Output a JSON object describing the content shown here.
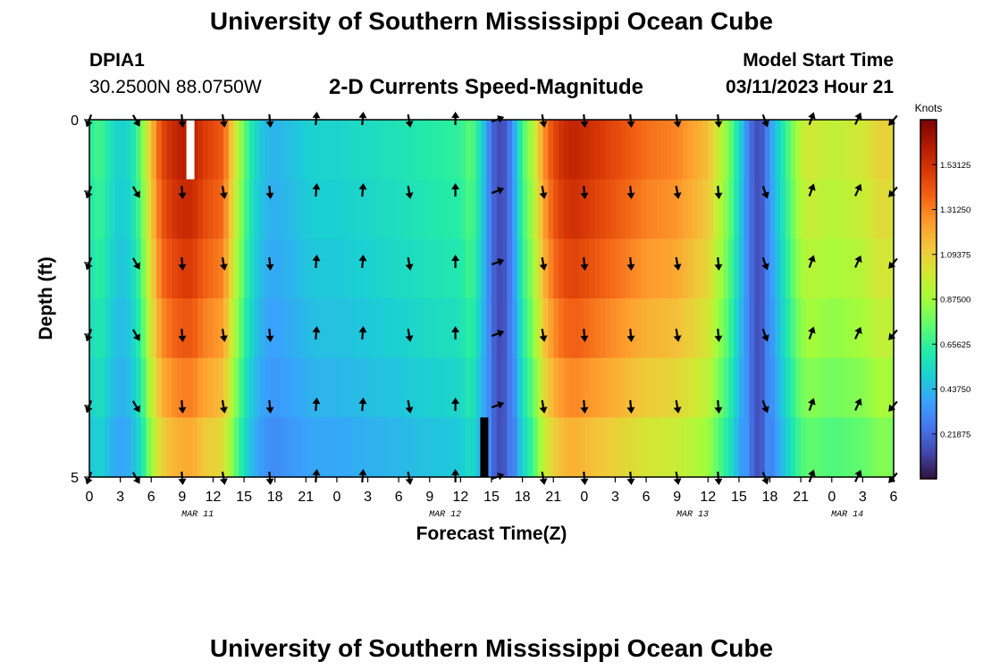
{
  "header": {
    "title": "University of Southern Mississippi Ocean Cube",
    "station_id": "DPIA1",
    "coords": "30.2500N  88.0750W",
    "plot_name": "2-D Currents Speed-Magnitude",
    "model_start_label": "Model Start Time",
    "model_start_value": "03/11/2023 Hour 21"
  },
  "footer": {
    "title": "University of Southern Mississippi Ocean Cube"
  },
  "chart_data": {
    "type": "heatmap",
    "title": "2-D Currents Speed-Magnitude",
    "xlabel": "Forecast Time(Z)",
    "ylabel": "Depth (ft)",
    "y_range": [
      0,
      5
    ],
    "y_tick_labels": [
      "0",
      "5"
    ],
    "x_tick_labels": [
      "0",
      "3",
      "6",
      "9",
      "12",
      "15",
      "18",
      "21",
      "0",
      "3",
      "6",
      "9",
      "12",
      "15",
      "18",
      "21",
      "0",
      "3",
      "6",
      "9",
      "12",
      "15",
      "18",
      "21",
      "0",
      "3",
      "6"
    ],
    "date_labels": [
      "MAR 11",
      "MAR 12",
      "MAR 13",
      "MAR 14"
    ],
    "date_label_hours": [
      10.5,
      34.5,
      58.5,
      73.5
    ],
    "x_range_hours": [
      0,
      78
    ],
    "colorbar": {
      "unit_label": "Knots",
      "range": [
        0.0,
        1.75
      ],
      "tick_labels": [
        "1.53125",
        "1.31250",
        "1.09375",
        "0.87500",
        "0.65625",
        "0.43750",
        "0.21875"
      ],
      "tick_values": [
        1.53125,
        1.3125,
        1.09375,
        0.875,
        0.65625,
        0.4375,
        0.21875
      ],
      "colormap": [
        "#30123b",
        "#4145ab",
        "#4675ed",
        "#39a2fc",
        "#1bcfd4",
        "#24eca6",
        "#61fc6c",
        "#a4fc3b",
        "#d1e834",
        "#f3c63a",
        "#fe9b2d",
        "#f36315",
        "#d93806",
        "#b11901",
        "#7a0403"
      ]
    },
    "surface_speed_profile": {
      "hours": [
        0,
        1,
        2,
        3,
        4,
        5,
        6,
        7,
        8,
        9,
        10,
        11,
        12,
        13,
        14,
        15,
        16,
        17,
        18,
        19,
        20,
        21,
        22,
        24,
        27,
        30,
        33,
        36,
        37,
        38,
        39,
        40,
        41,
        42,
        43,
        44,
        45,
        46,
        47,
        48,
        51,
        54,
        57,
        60,
        62,
        63,
        64,
        65,
        66,
        67,
        68,
        69,
        70,
        72,
        75,
        77,
        78
      ],
      "speed": [
        0.62,
        0.7,
        0.58,
        0.5,
        0.55,
        0.75,
        1.15,
        1.45,
        1.55,
        1.6,
        1.6,
        1.5,
        1.45,
        1.4,
        1.05,
        0.75,
        0.55,
        0.45,
        0.42,
        0.45,
        0.47,
        0.5,
        0.52,
        0.52,
        0.55,
        0.58,
        0.62,
        0.65,
        0.75,
        0.55,
        0.22,
        0.12,
        0.3,
        0.7,
        0.9,
        1.25,
        1.45,
        1.55,
        1.58,
        1.55,
        1.45,
        1.35,
        1.3,
        1.15,
        0.8,
        0.55,
        0.25,
        0.12,
        0.35,
        0.55,
        0.75,
        0.95,
        1.0,
        0.95,
        1.0,
        1.1,
        1.05
      ]
    },
    "depth_factor": [
      1.0,
      0.97,
      0.93,
      0.88,
      0.82,
      0.75
    ],
    "arrows": {
      "hours": [
        0,
        4.5,
        9,
        13,
        17.5,
        22,
        26.5,
        31,
        35.5,
        39.5,
        44,
        48,
        52.5,
        57,
        61,
        65.5,
        70,
        74.5,
        78
      ],
      "angles_deg": [
        200,
        150,
        175,
        170,
        175,
        5,
        5,
        170,
        0,
        70,
        170,
        175,
        175,
        170,
        175,
        160,
        20,
        25,
        220
      ],
      "depth_levels": [
        0,
        1,
        2,
        3,
        4,
        5
      ]
    },
    "missing_cells": [
      {
        "hour": 9.8,
        "depth_row": 0,
        "color": "#ffffff"
      },
      {
        "hour": 38.3,
        "depth_row": 5,
        "color": "#000000"
      }
    ]
  }
}
